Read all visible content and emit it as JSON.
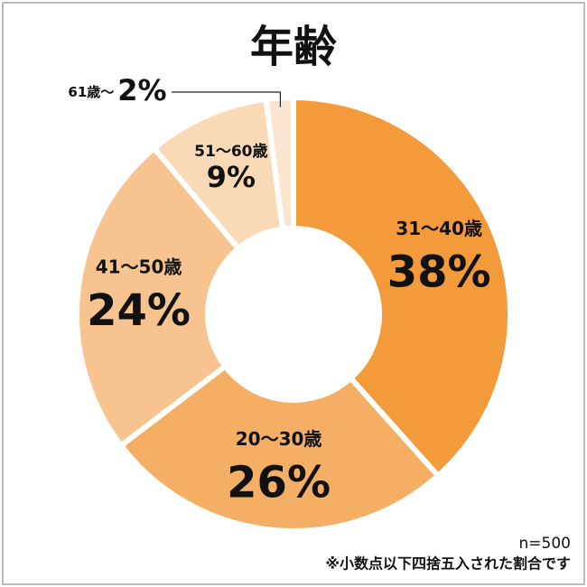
{
  "chart_data": {
    "type": "pie",
    "donut": true,
    "title": "年齢",
    "categories": [
      "31～40歳",
      "20～30歳",
      "41～50歳",
      "51～60歳",
      "61歳～"
    ],
    "values": [
      38,
      26,
      24,
      9,
      2
    ],
    "value_labels": [
      "38%",
      "26%",
      "24%",
      "9%",
      "2%"
    ],
    "colors": [
      "#f39a3a",
      "#f5af64",
      "#f7c48f",
      "#fad9b6",
      "#fce5d0"
    ],
    "notes": [
      "n=500",
      "※小数点以下四捨五入された割合です"
    ]
  }
}
